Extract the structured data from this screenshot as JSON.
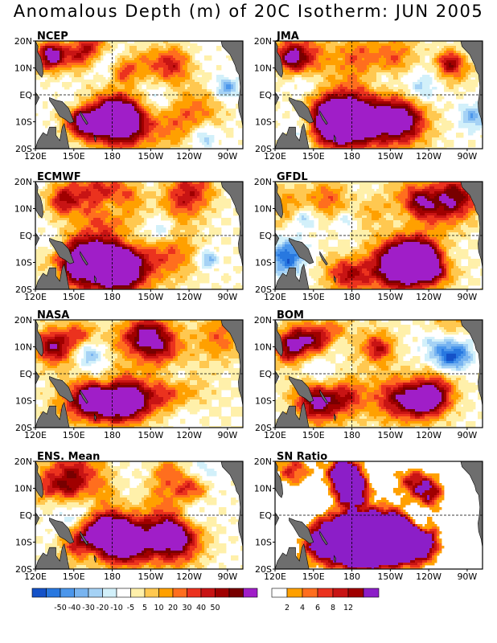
{
  "title": "Anomalous Depth (m) of 20C Isotherm: JUN 2005",
  "lon_ticks": [
    "120E",
    "150E",
    "180",
    "150W",
    "120W",
    "90W"
  ],
  "lat_ticks": [
    "20N",
    "10N",
    "EQ",
    "10S",
    "20S"
  ],
  "panels": [
    {
      "label": "NCEP",
      "seed": 11,
      "bias": 0.1
    },
    {
      "label": "JMA",
      "seed": 23,
      "bias": 0.28
    },
    {
      "label": "ECMWF",
      "seed": 37,
      "bias": 0.25
    },
    {
      "label": "GFDL",
      "seed": 41,
      "bias": 0.32
    },
    {
      "label": "NASA",
      "seed": 53,
      "bias": 0.35
    },
    {
      "label": "BOM",
      "seed": 67,
      "bias": 0.3
    },
    {
      "label": "ENS. Mean",
      "seed": 79,
      "bias": 0.18
    },
    {
      "label": "SN Ratio",
      "seed": 89,
      "bias": 0.0,
      "ratio": true
    }
  ],
  "anomaly_colorbar": {
    "colors": [
      "#1452c8",
      "#2878e0",
      "#4b96eb",
      "#78b4f0",
      "#a5d2f5",
      "#d2f0fa",
      "#ffffff",
      "#fff0aa",
      "#ffc850",
      "#ffa000",
      "#ff6e1e",
      "#eb321e",
      "#c81414",
      "#a00000",
      "#780000",
      "#a01ec8"
    ],
    "labels": [
      "-50",
      "-40",
      "-30",
      "-20",
      "-10",
      "-5",
      "5",
      "10",
      "20",
      "30",
      "40",
      "50"
    ]
  },
  "snratio_colorbar": {
    "colors": [
      "#ffffff",
      "#ffa000",
      "#ff6e1e",
      "#eb321e",
      "#c81414",
      "#a00000",
      "#8c1ec8"
    ],
    "labels": [
      "2",
      "4",
      "6",
      "8",
      "12"
    ]
  }
}
